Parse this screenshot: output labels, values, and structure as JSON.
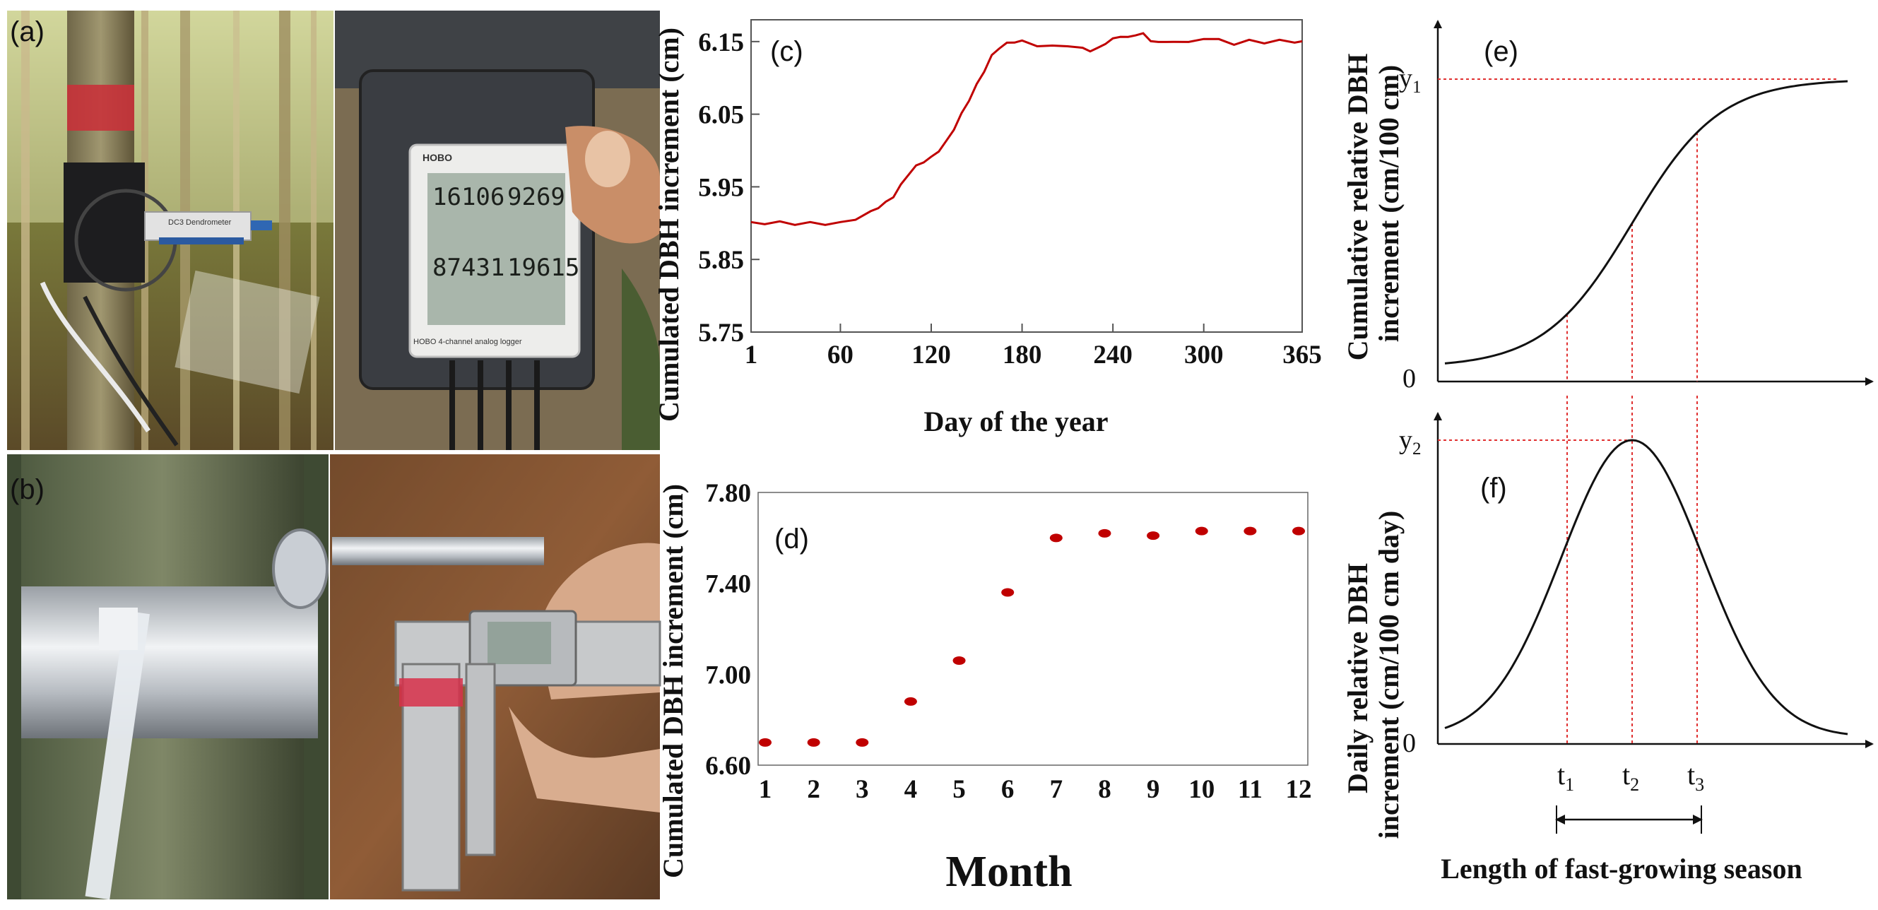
{
  "photos": {
    "a_label": "(a)",
    "b_label": "(b)",
    "dendrometer_text": "DC3 Dendrometer",
    "logger_brand": "HOBO",
    "logger_footer": "HOBO 4-channel analog logger",
    "logger_readings": [
      "16106",
      "9269",
      "87431",
      "19615"
    ]
  },
  "chart_data": [
    {
      "panel": "(c)",
      "type": "line",
      "xlabel": "Day of the year",
      "ylabel": "Cumulated DBH increment (cm)",
      "xlim": [
        1,
        365
      ],
      "ylim": [
        5.75,
        6.18
      ],
      "xticks": [
        1,
        60,
        120,
        180,
        240,
        300,
        365
      ],
      "yticks": [
        "5.75",
        "5.85",
        "5.95",
        "6.05",
        "6.15"
      ],
      "color": "#c00000",
      "series": [
        {
          "x": [
            1,
            10,
            20,
            30,
            40,
            50,
            60,
            70,
            80,
            85,
            90,
            95,
            100,
            105,
            110,
            115,
            120,
            125,
            130,
            135,
            140,
            145,
            150,
            155,
            160,
            165,
            170,
            175,
            180,
            190,
            200,
            210,
            220,
            225,
            230,
            235,
            240,
            245,
            250,
            255,
            260,
            265,
            270,
            280,
            290,
            300,
            310,
            320,
            330,
            340,
            350,
            360,
            365
          ],
          "y": [
            5.9,
            5.9,
            5.901,
            5.899,
            5.9,
            5.899,
            5.9,
            5.906,
            5.915,
            5.922,
            5.928,
            5.937,
            5.952,
            5.968,
            5.978,
            5.985,
            5.99,
            6.0,
            6.012,
            6.03,
            6.05,
            6.07,
            6.09,
            6.11,
            6.13,
            6.142,
            6.147,
            6.15,
            6.15,
            6.145,
            6.143,
            6.145,
            6.14,
            6.138,
            6.14,
            6.148,
            6.153,
            6.158,
            6.155,
            6.16,
            6.16,
            6.152,
            6.148,
            6.151,
            6.148,
            6.155,
            6.152,
            6.147,
            6.151,
            6.149,
            6.151,
            6.15,
            6.149
          ]
        }
      ]
    },
    {
      "panel": "(d)",
      "type": "scatter",
      "xlabel": "Month",
      "ylabel": "Cumulated DBH increment (cm)",
      "xlim": [
        1,
        12
      ],
      "ylim": [
        6.6,
        7.8
      ],
      "xticks": [
        1,
        2,
        3,
        4,
        5,
        6,
        7,
        8,
        9,
        10,
        11,
        12
      ],
      "yticks": [
        "6.60",
        "7.00",
        "7.40",
        "7.80"
      ],
      "color": "#c00000",
      "series": [
        {
          "x": [
            1,
            2,
            3,
            4,
            5,
            6,
            7,
            8,
            9,
            10,
            11,
            12
          ],
          "y": [
            6.7,
            6.7,
            6.7,
            6.88,
            7.06,
            7.36,
            7.6,
            7.62,
            7.61,
            7.63,
            7.63,
            7.63
          ]
        }
      ]
    },
    {
      "panel": "(e)",
      "type": "line",
      "ylabel": "Cumulative relative DBH increment (cm/100 cm)",
      "y_tick_top": "y",
      "y_tick_top_sub": "1",
      "y_tick_zero": "0",
      "curve": "logistic",
      "color": "#111111",
      "guide_color": "#e03030"
    },
    {
      "panel": "(f)",
      "type": "line",
      "ylabel": "Daily relative DBH increment (cm/100 cm day)",
      "y_tick_top": "y",
      "y_tick_top_sub": "2",
      "y_tick_zero": "0",
      "curve": "bell",
      "color": "#111111",
      "guide_color": "#e03030",
      "x_marks": [
        {
          "base": "t",
          "sub": "1"
        },
        {
          "base": "t",
          "sub": "2"
        },
        {
          "base": "t",
          "sub": "3"
        }
      ],
      "xlabel": "Length of fast-growing season"
    }
  ]
}
